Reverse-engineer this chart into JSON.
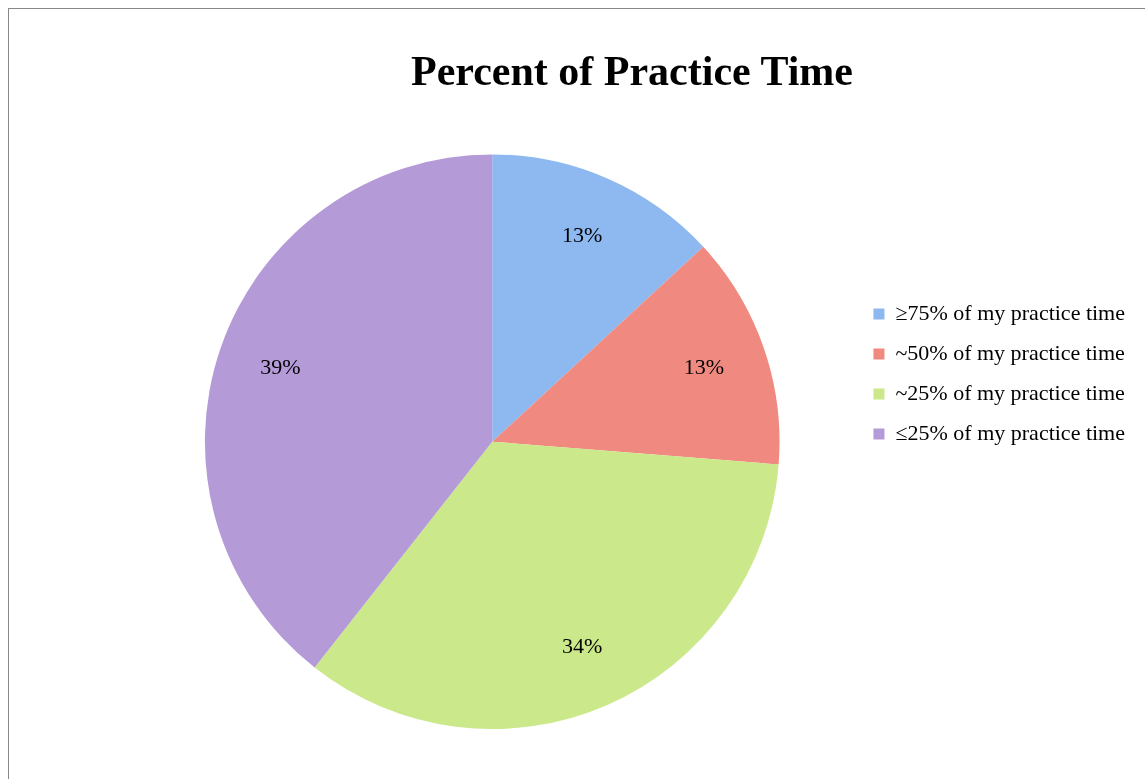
{
  "chart_data": {
    "type": "pie",
    "title": "Percent of Practice Time",
    "categories": [
      "≥75% of my practice time",
      "~50% of my practice time",
      "~25% of my practice time",
      "≤25% of my practice time"
    ],
    "values": [
      13,
      13,
      34,
      39
    ],
    "colors": [
      "#8db8f0",
      "#f08a80",
      "#cbe88a",
      "#b59ad8"
    ],
    "value_labels": [
      "13%",
      "13%",
      "34%",
      "39%"
    ],
    "legend": "right"
  }
}
